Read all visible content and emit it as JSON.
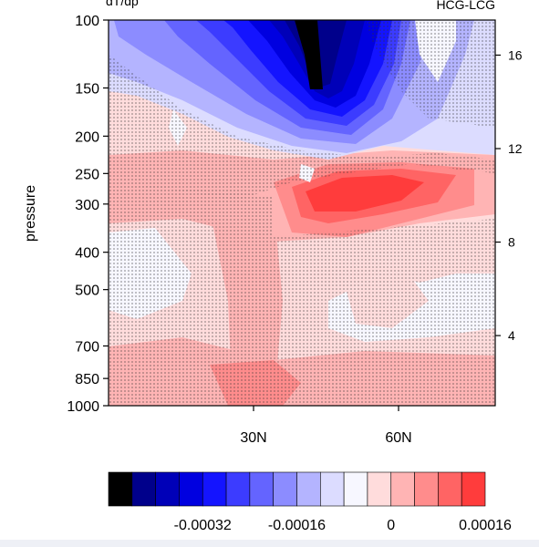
{
  "chart_data": {
    "type": "heatmap",
    "title_left": "dT/dp",
    "title_right": "HCG-LCG",
    "ylabel": "pressure",
    "y_left_scale": "log",
    "y_left_ticks": [
      100,
      150,
      200,
      250,
      300,
      400,
      500,
      700,
      850,
      1000
    ],
    "y_right_ticks": [
      16,
      12,
      8,
      4
    ],
    "x_ticks": [
      {
        "value": 30,
        "label": "30N"
      },
      {
        "value": 60,
        "label": "60N"
      }
    ],
    "colorbar": {
      "colors": [
        "#000000",
        "#00008b",
        "#0000b8",
        "#0000e0",
        "#1414ff",
        "#3c3cff",
        "#6464ff",
        "#8c8cff",
        "#b4b4ff",
        "#dcdcff",
        "#f7f7ff",
        "#ffdcdc",
        "#ffb4b4",
        "#ff8c8c",
        "#ff6464",
        "#ff3c3c"
      ],
      "tick_labels": [
        "-0.00032",
        "-0.00016",
        "0",
        "0.00016"
      ],
      "tick_values": [
        -0.00032,
        -0.00016,
        0,
        0.00016
      ]
    },
    "stippling": "significance"
  }
}
